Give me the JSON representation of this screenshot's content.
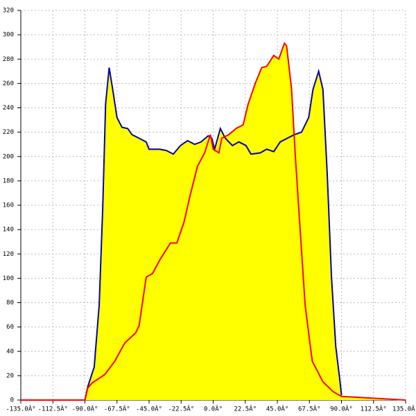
{
  "chart_data": {
    "type": "area",
    "xlim": [
      -135,
      135
    ],
    "ylim": [
      0,
      320
    ],
    "xticks": [
      {
        "value": -135,
        "label": "-135.0Â°"
      },
      {
        "value": -112.5,
        "label": "-112.5Â°"
      },
      {
        "value": -90,
        "label": "-90.0Â°"
      },
      {
        "value": -67.5,
        "label": "-67.5Â°"
      },
      {
        "value": -45,
        "label": "-45.0Â°"
      },
      {
        "value": -22.5,
        "label": "-22.5Â°"
      },
      {
        "value": 0,
        "label": "0.0Â°"
      },
      {
        "value": 22.5,
        "label": "22.5Â°"
      },
      {
        "value": 45,
        "label": "45.0Â°"
      },
      {
        "value": 67.5,
        "label": "67.5Â°"
      },
      {
        "value": 90,
        "label": "90.0Â°"
      },
      {
        "value": 112.5,
        "label": "112.5Â°"
      },
      {
        "value": 135,
        "label": "135.0Â°"
      }
    ],
    "yticks": [
      0,
      20,
      40,
      60,
      80,
      100,
      120,
      140,
      160,
      180,
      200,
      220,
      240,
      260,
      280,
      300,
      320
    ],
    "grid": true,
    "fill": "#ffff00",
    "series": [
      {
        "color": "#0000aa",
        "x": [
          -90,
          -88,
          -83.5,
          -80,
          -77.5,
          -75.5,
          -73,
          -70.5,
          -67.5,
          -64,
          -60,
          -57,
          -52,
          -47,
          -45,
          -37.5,
          -33,
          -28,
          -23,
          -18,
          -13,
          -8.5,
          -3.5,
          -1,
          1,
          5,
          8.5,
          13.5,
          18,
          23,
          26.5,
          33,
          37.5,
          42.5,
          47,
          52,
          57,
          62,
          67,
          70,
          74,
          77,
          80,
          83,
          86,
          89,
          90
        ],
        "values": [
          0,
          11,
          27,
          78,
          158,
          243,
          273,
          255,
          232,
          224,
          223,
          218,
          215,
          212,
          206,
          206,
          205,
          202,
          209,
          213,
          210,
          212,
          217,
          215,
          206,
          223,
          215,
          209,
          212,
          209,
          202,
          203,
          206,
          204,
          212,
          215,
          218,
          220,
          232,
          255,
          270,
          255,
          186,
          101,
          44,
          15,
          4
        ]
      },
      {
        "color": "#ff0000",
        "x": [
          -135,
          -90,
          -88,
          -85,
          -76,
          -69,
          -62,
          -54.5,
          -52,
          -47,
          -42.5,
          -37.5,
          -30,
          -25.5,
          -20.5,
          -16,
          -11,
          -6,
          -2,
          0,
          4,
          6,
          11,
          16,
          21,
          24.5,
          29.5,
          34,
          37.5,
          42.5,
          46,
          50,
          51.5,
          55,
          57.5,
          60,
          64.5,
          69.5,
          77,
          84,
          90,
          135
        ],
        "values": [
          0,
          0,
          10,
          14,
          21,
          32,
          47,
          55,
          61,
          101,
          104,
          115,
          129,
          129,
          146,
          169,
          192,
          203,
          218,
          206,
          203,
          215,
          218,
          223,
          226,
          243,
          260,
          273,
          274,
          283,
          280,
          293,
          291,
          255,
          203,
          158,
          78,
          32,
          15,
          7,
          3,
          0
        ]
      }
    ]
  }
}
